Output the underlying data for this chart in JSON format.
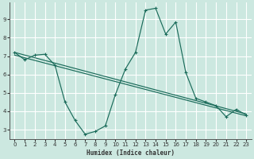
{
  "bg_color": "#cce8e0",
  "grid_color": "#ffffff",
  "line_color": "#1a6b5a",
  "xlabel": "Humidex (Indice chaleur)",
  "xlim": [
    -0.5,
    23.5
  ],
  "ylim": [
    2.5,
    9.9
  ],
  "xticks": [
    0,
    1,
    2,
    3,
    4,
    5,
    6,
    7,
    8,
    9,
    10,
    11,
    12,
    13,
    14,
    15,
    16,
    17,
    18,
    19,
    20,
    21,
    22,
    23
  ],
  "yticks": [
    3,
    4,
    5,
    6,
    7,
    8,
    9
  ],
  "series1_x": [
    0,
    1,
    2,
    3,
    4,
    5,
    6,
    7,
    8,
    9,
    10,
    11,
    12,
    13,
    14,
    15,
    16,
    17,
    18,
    19,
    20,
    21,
    22,
    23
  ],
  "series1_y": [
    7.2,
    6.8,
    7.05,
    7.1,
    6.5,
    4.5,
    3.5,
    2.75,
    2.9,
    3.2,
    4.9,
    6.3,
    7.2,
    9.5,
    9.6,
    8.2,
    8.85,
    6.1,
    4.7,
    4.5,
    4.3,
    3.7,
    4.1,
    3.8
  ],
  "series2_x": [
    0,
    23
  ],
  "series2_y": [
    7.2,
    3.85
  ],
  "series3_x": [
    0,
    23
  ],
  "series3_y": [
    7.05,
    3.75
  ]
}
